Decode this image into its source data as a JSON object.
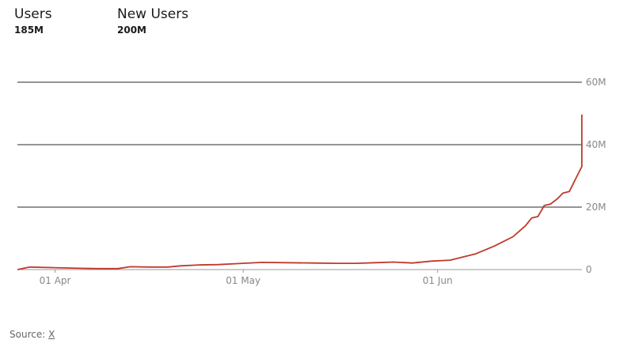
{
  "stats": [
    {
      "label": "Users",
      "value": "185M"
    },
    {
      "label": "New Users",
      "value": "200M"
    }
  ],
  "source": {
    "prefix": "Source:",
    "link": "X"
  },
  "colors": {
    "line": "#c0392b",
    "grid": "#555555",
    "axis_text": "#888888"
  },
  "chart_data": {
    "type": "line",
    "title": "",
    "xlabel": "",
    "ylabel": "",
    "ylim": [
      0,
      60
    ],
    "x_unit": "date",
    "x_range": [
      "2023-03-26",
      "2023-06-24"
    ],
    "x_ticks": [
      {
        "date": "2023-04-01",
        "label": "01 Apr"
      },
      {
        "date": "2023-05-01",
        "label": "01 May"
      },
      {
        "date": "2023-06-01",
        "label": "01 Jun"
      }
    ],
    "y_ticks": [
      {
        "value": 0,
        "label": "0"
      },
      {
        "value": 20,
        "label": "20M"
      },
      {
        "value": 40,
        "label": "40M"
      },
      {
        "value": 60,
        "label": "60M"
      }
    ],
    "grid": true,
    "series": [
      {
        "unit": "M",
        "points": [
          [
            "2023-03-26",
            0.0
          ],
          [
            "2023-03-28",
            0.8
          ],
          [
            "2023-04-01",
            0.6
          ],
          [
            "2023-04-05",
            0.4
          ],
          [
            "2023-04-08",
            0.3
          ],
          [
            "2023-04-11",
            0.3
          ],
          [
            "2023-04-13",
            0.9
          ],
          [
            "2023-04-16",
            0.8
          ],
          [
            "2023-04-19",
            0.8
          ],
          [
            "2023-04-21",
            1.2
          ],
          [
            "2023-04-24",
            1.5
          ],
          [
            "2023-04-27",
            1.6
          ],
          [
            "2023-04-30",
            1.9
          ],
          [
            "2023-05-04",
            2.3
          ],
          [
            "2023-05-08",
            2.2
          ],
          [
            "2023-05-12",
            2.1
          ],
          [
            "2023-05-16",
            2.0
          ],
          [
            "2023-05-19",
            2.0
          ],
          [
            "2023-05-22",
            2.2
          ],
          [
            "2023-05-25",
            2.4
          ],
          [
            "2023-05-28",
            2.1
          ],
          [
            "2023-05-31",
            2.7
          ],
          [
            "2023-06-03",
            3.0
          ],
          [
            "2023-06-07",
            5.0
          ],
          [
            "2023-06-10",
            7.5
          ],
          [
            "2023-06-13",
            10.5
          ],
          [
            "2023-06-15",
            14.0
          ],
          [
            "2023-06-16",
            16.5
          ],
          [
            "2023-06-17",
            17.0
          ],
          [
            "2023-06-18",
            20.5
          ],
          [
            "2023-06-19",
            21.0
          ],
          [
            "2023-06-20",
            22.5
          ],
          [
            "2023-06-21",
            24.5
          ],
          [
            "2023-06-22",
            25.0
          ],
          [
            "2023-06-23",
            29.0
          ],
          [
            "2023-06-24",
            33.0
          ],
          [
            "2023-06-24",
            38.5
          ],
          [
            "2023-06-24",
            46.0
          ],
          [
            "2023-06-24",
            49.5
          ],
          [
            "2023-06-24",
            49.0
          ]
        ]
      }
    ]
  }
}
